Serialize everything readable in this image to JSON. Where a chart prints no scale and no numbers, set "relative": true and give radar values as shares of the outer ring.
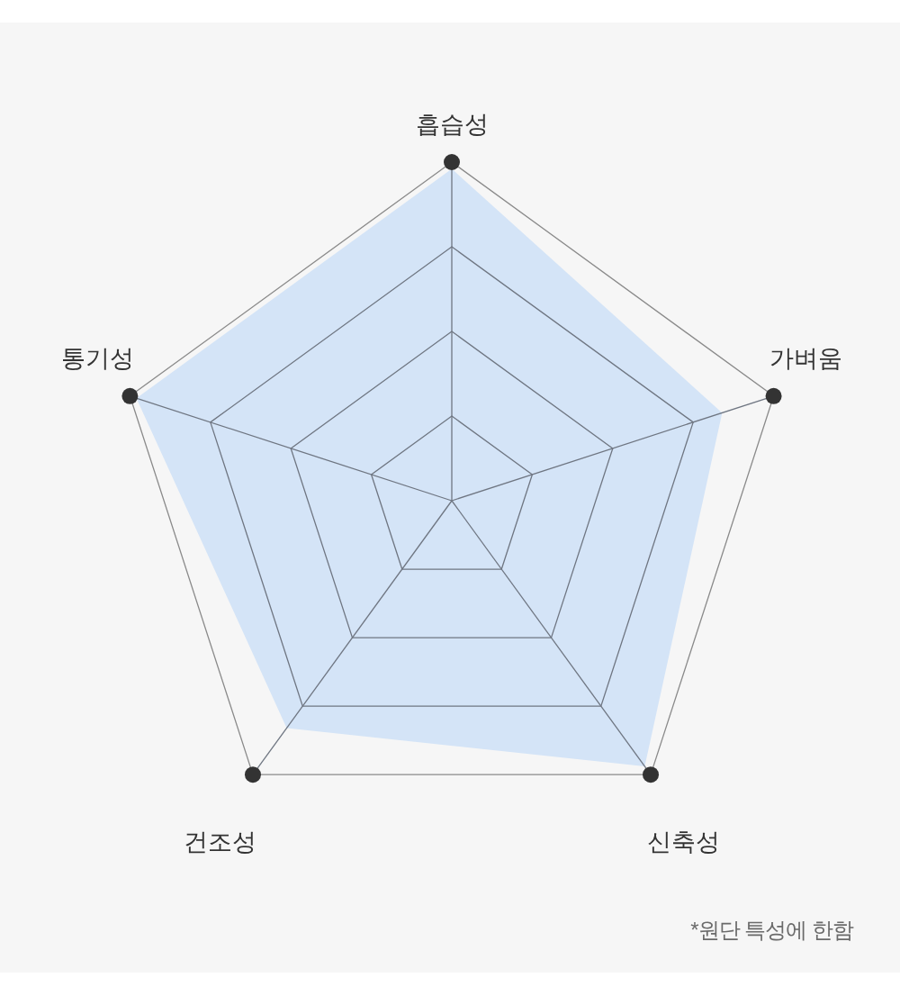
{
  "chart_data": {
    "type": "radar",
    "categories": [
      "흡습성",
      "가벼움",
      "신축성",
      "건조성",
      "통기성"
    ],
    "relative": true,
    "series": [
      {
        "color": "#d4e4f7",
        "values": [
          0.98,
          0.84,
          0.97,
          0.83,
          0.98
        ]
      }
    ],
    "grid": true,
    "annotations": [
      "*원단 특성에 한함"
    ]
  }
}
